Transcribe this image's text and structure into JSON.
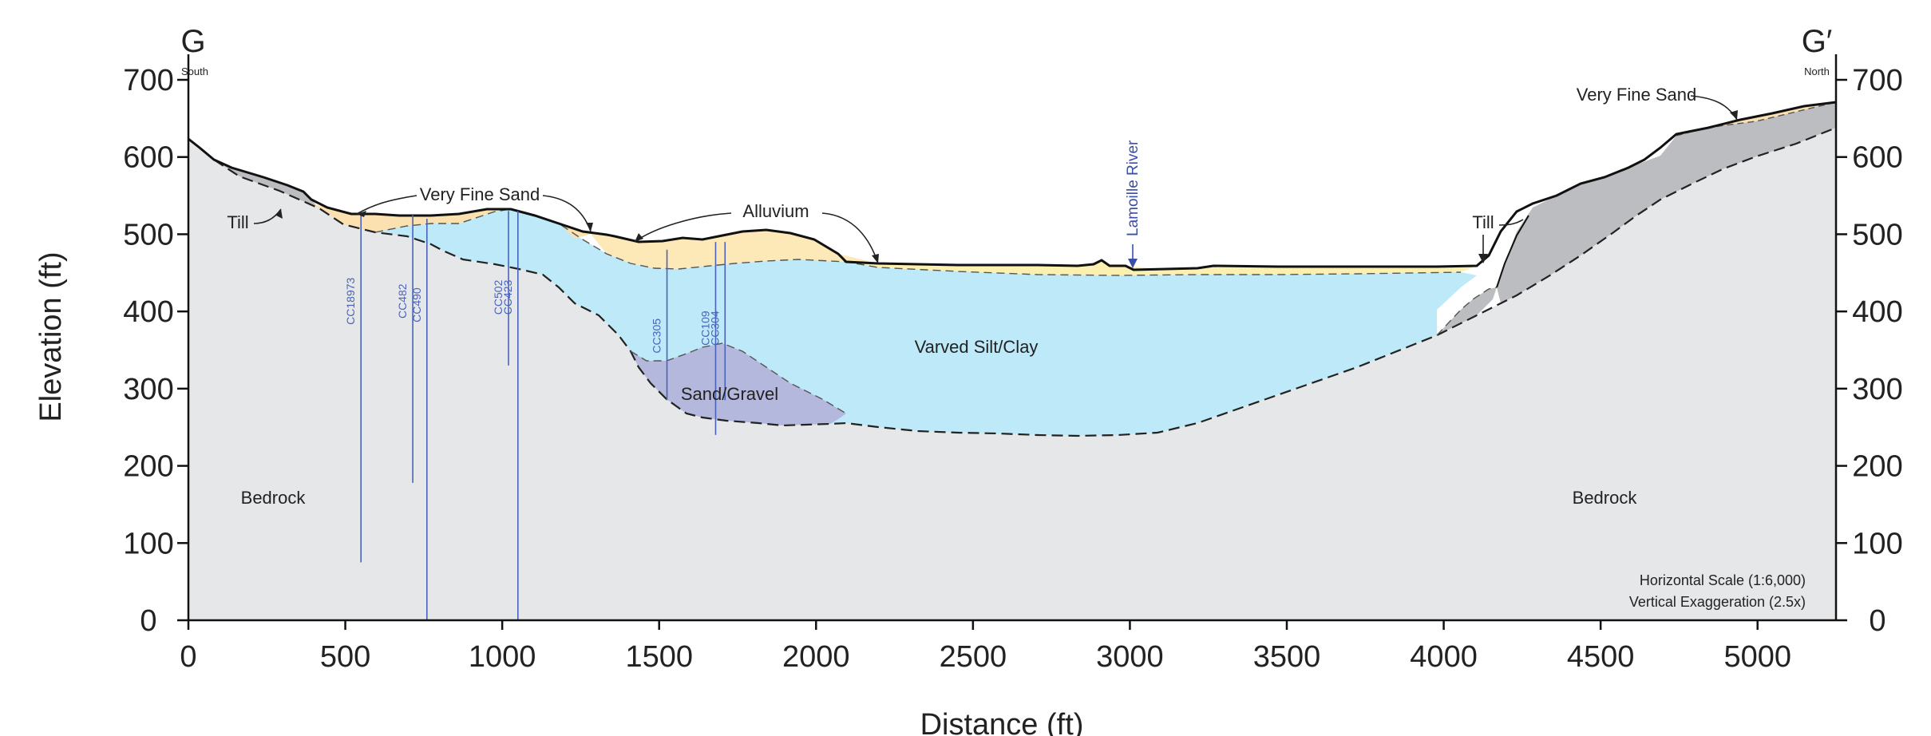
{
  "section": {
    "left_label": "G",
    "right_label": "G′",
    "left_direction": "South",
    "right_direction": "North"
  },
  "axes": {
    "y_label": "Elevation (ft)",
    "x_label": "Distance (ft)",
    "x_ticks": [
      0,
      500,
      1000,
      1500,
      2000,
      2500,
      3000,
      3500,
      4000,
      4500,
      5000
    ],
    "y_ticks": [
      0,
      100,
      200,
      300,
      400,
      500,
      600,
      700
    ],
    "x_range": [
      0,
      5250
    ],
    "y_range": [
      0,
      700
    ]
  },
  "scale_note": {
    "horizontal": "Horizontal Scale (1:6,000)",
    "vertical": "Vertical Exaggeration (2.5x)"
  },
  "labels": {
    "very_fine_sand_left": "Very Fine Sand",
    "very_fine_sand_right": "Very Fine Sand",
    "alluvium": "Alluvium",
    "till_left": "Till",
    "till_right": "Till",
    "lamoille_river": "Lamoille River",
    "varved": "Varved Silt/Clay",
    "sand_gravel": "Sand/Gravel",
    "bedrock_left": "Bedrock",
    "bedrock_right": "Bedrock"
  },
  "boreholes": [
    {
      "name": "CC18973",
      "x": 550,
      "top": 525,
      "bottom": 75
    },
    {
      "name": "CC482",
      "x": 715,
      "top": 525,
      "bottom": 178
    },
    {
      "name": "CC490",
      "x": 760,
      "top": 520,
      "bottom": 0
    },
    {
      "name": "CC502",
      "x": 1020,
      "top": 530,
      "bottom": 330
    },
    {
      "name": "CC423",
      "x": 1050,
      "top": 530,
      "bottom": 0
    },
    {
      "name": "CC305",
      "x": 1525,
      "top": 480,
      "bottom": 285
    },
    {
      "name": "CC109",
      "x": 1680,
      "top": 490,
      "bottom": 240
    },
    {
      "name": "CC304",
      "x": 1710,
      "top": 490,
      "bottom": 285
    }
  ],
  "colors": {
    "bedrock": "#e6e7e9",
    "till": "#bcbdc0",
    "varved": "#bde9f8",
    "sand_gravel": "#b3b8dc",
    "very_fine_sand": "#fbe0b0",
    "alluvium": "#fde8b8",
    "surface_yellow": "#fbf0b0",
    "borehole": "#4a63b8",
    "river": "#3b4fa8"
  }
}
